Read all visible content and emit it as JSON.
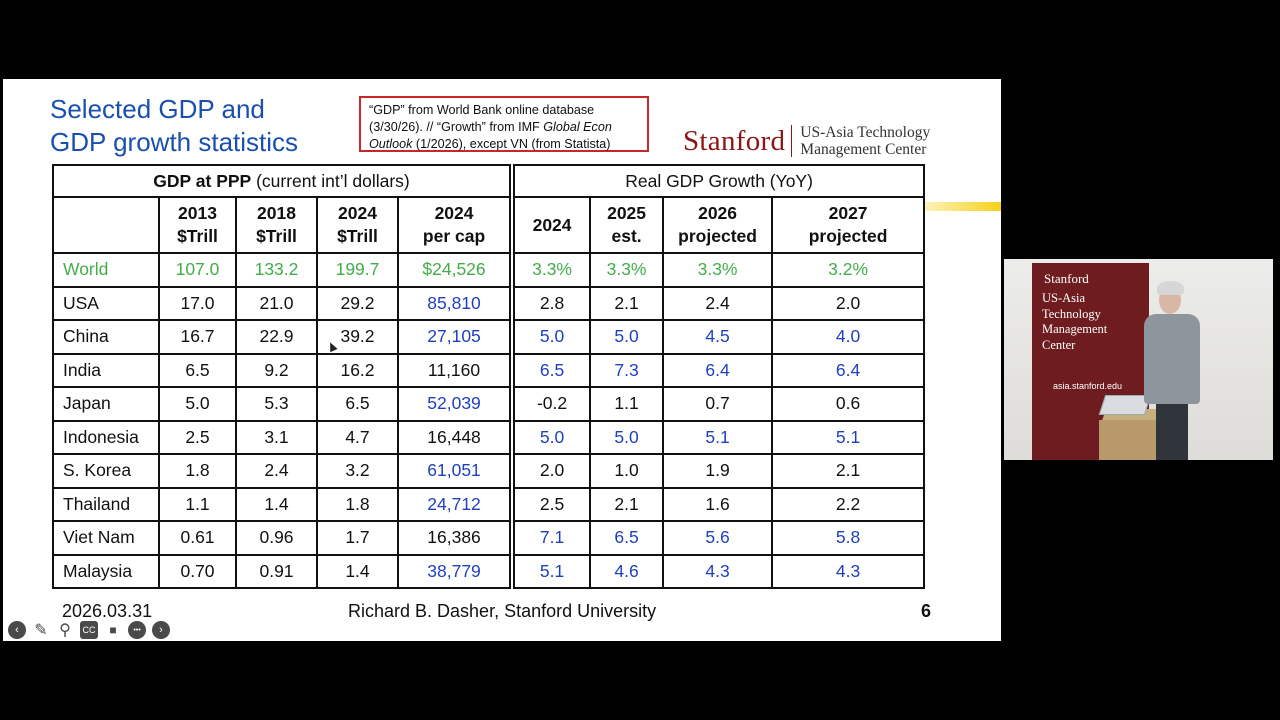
{
  "slide": {
    "title_line1": "Selected GDP and",
    "title_line2": "GDP growth statistics",
    "source_note": {
      "part1": "“GDP” from World Bank online database (3/30/26). // “Growth” from IMF ",
      "italic1": "Global Econ Outlook",
      "part2": " (1/2026), except VN (from Statista)"
    },
    "logo": {
      "word": "Stanford",
      "center_line1": "US-Asia Technology",
      "center_line2": "Management Center"
    },
    "table": {
      "group_left_bold": "GDP at PPP",
      "group_left_rest": " (current int’l dollars)",
      "group_right": "Real GDP Growth (YoY)",
      "columns": [
        {
          "l1": "2013",
          "l2": "$Trill"
        },
        {
          "l1": "2018",
          "l2": "$Trill"
        },
        {
          "l1": "2024",
          "l2": "$Trill"
        },
        {
          "l1": "2024",
          "l2": "per cap"
        },
        {
          "l1": "2024",
          "l2": ""
        },
        {
          "l1": "2025",
          "l2": "est."
        },
        {
          "l1": "2026",
          "l2": "projected"
        },
        {
          "l1": "2027",
          "l2": "projected"
        }
      ],
      "rows": [
        {
          "name": "World",
          "cells": [
            "107.0",
            "133.2",
            "199.7",
            "$24,526",
            "3.3%",
            "3.3%",
            "3.3%",
            "3.2%"
          ]
        },
        {
          "name": "USA",
          "cells": [
            "17.0",
            "21.0",
            "29.2",
            "85,810",
            "2.8",
            "2.1",
            "2.4",
            "2.0"
          ]
        },
        {
          "name": "China",
          "cells": [
            "16.7",
            "22.9",
            "39.2",
            "27,105",
            "5.0",
            "5.0",
            "4.5",
            "4.0"
          ]
        },
        {
          "name": "India",
          "cells": [
            "6.5",
            "9.2",
            "16.2",
            "11,160",
            "6.5",
            "7.3",
            "6.4",
            "6.4"
          ]
        },
        {
          "name": "Japan",
          "cells": [
            "5.0",
            "5.3",
            "6.5",
            "52,039",
            "-0.2",
            "1.1",
            "0.7",
            "0.6"
          ]
        },
        {
          "name": "Indonesia",
          "cells": [
            "2.5",
            "3.1",
            "4.7",
            "16,448",
            "5.0",
            "5.0",
            "5.1",
            "5.1"
          ]
        },
        {
          "name": "S. Korea",
          "cells": [
            "1.8",
            "2.4",
            "3.2",
            "61,051",
            "2.0",
            "1.0",
            "1.9",
            "2.1"
          ]
        },
        {
          "name": "Thailand",
          "cells": [
            "1.1",
            "1.4",
            "1.8",
            "24,712",
            "2.5",
            "2.1",
            "1.6",
            "2.2"
          ]
        },
        {
          "name": "Viet Nam",
          "cells": [
            "0.61",
            "0.96",
            "1.7",
            "16,386",
            "7.1",
            "6.5",
            "5.6",
            "5.8"
          ]
        },
        {
          "name": "Malaysia",
          "cells": [
            "0.70",
            "0.91",
            "1.4",
            "38,779",
            "5.1",
            "4.6",
            "4.3",
            "4.3"
          ]
        }
      ]
    },
    "footer": {
      "date": "2026.03.31",
      "author": "Richard B. Dasher, Stanford University",
      "page": "6"
    },
    "controls": [
      {
        "name": "previous-slide-icon",
        "glyph": "‹"
      },
      {
        "name": "pen-icon",
        "glyph": "✎"
      },
      {
        "name": "zoom-icon",
        "glyph": "⚲"
      },
      {
        "name": "captions-icon",
        "glyph": "CC"
      },
      {
        "name": "camera-icon",
        "glyph": "■"
      },
      {
        "name": "more-options-icon",
        "glyph": "•••"
      },
      {
        "name": "next-slide-icon",
        "glyph": "›"
      }
    ]
  },
  "speaker_video": {
    "banner_title": "Stanford",
    "banner_line1": "US-Asia",
    "banner_line2": "Technology",
    "banner_line3": "Management",
    "banner_line4": "Center",
    "banner_url": "asia.stanford.edu"
  },
  "colors": {
    "title_blue": "#1a4fb0",
    "stanford_red": "#8c1515",
    "world_green": "#43ad4a",
    "value_blue": "#1f3fbd",
    "source_box_red": "#c7262d"
  }
}
